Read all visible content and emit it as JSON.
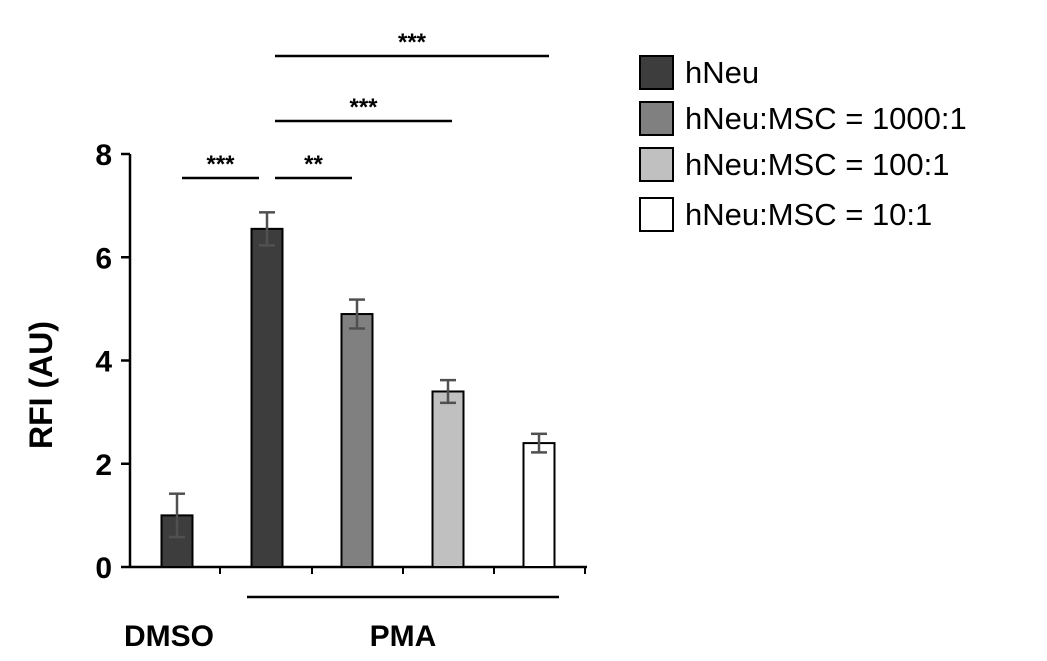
{
  "chart_data": {
    "type": "bar",
    "ylabel": "RFI (AU)",
    "ylim": [
      0,
      8
    ],
    "yticks": [
      "0",
      "2",
      "4",
      "6",
      "8"
    ],
    "groups": [
      {
        "label": "DMSO",
        "bars": [
          0
        ]
      },
      {
        "label": "PMA",
        "bars": [
          1,
          2,
          3,
          4
        ]
      }
    ],
    "bars": [
      {
        "series": "hNeu",
        "value": 1.0,
        "error": 0.42
      },
      {
        "series": "hNeu",
        "value": 6.55,
        "error": 0.32
      },
      {
        "series": "hNeu:MSC = 1000:1",
        "value": 4.9,
        "error": 0.28
      },
      {
        "series": "hNeu:MSC = 100:1",
        "value": 3.4,
        "error": 0.22
      },
      {
        "series": "hNeu:MSC = 10:1",
        "value": 2.4,
        "error": 0.18
      }
    ],
    "series": [
      {
        "name": "hNeu",
        "color": "#3d3d3d"
      },
      {
        "name": "hNeu:MSC = 1000:1",
        "color": "#808080"
      },
      {
        "name": "hNeu:MSC = 100:1",
        "color": "#c0c0c0"
      },
      {
        "name": "hNeu:MSC = 10:1",
        "color": "#ffffff"
      }
    ],
    "legend_position": "top-right",
    "grid": false,
    "significance": [
      {
        "from": 0,
        "to": 1,
        "label": "***"
      },
      {
        "from": 1,
        "to": 2,
        "label": "**"
      },
      {
        "from": 1,
        "to": 3,
        "label": "***"
      },
      {
        "from": 1,
        "to": 4,
        "label": "***"
      }
    ]
  }
}
